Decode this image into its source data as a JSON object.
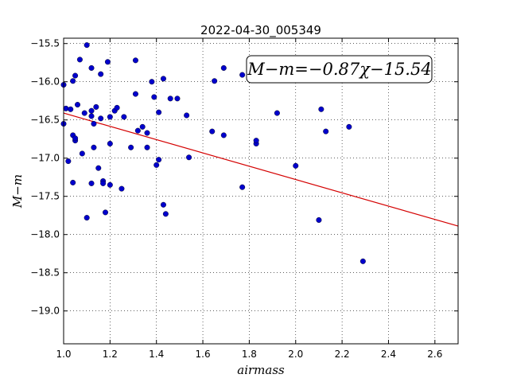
{
  "chart_data": {
    "type": "scatter",
    "title": "2022-04-30_005349",
    "xlabel": "airmass",
    "ylabel": "M−m",
    "xlim": [
      1.0,
      2.7
    ],
    "ylim": [
      -19.43,
      -15.43
    ],
    "y_inverted": true,
    "x_ticks": [
      1.0,
      1.2,
      1.4,
      1.6,
      1.8,
      2.0,
      2.2,
      2.4,
      2.6
    ],
    "x_tick_labels": [
      "1.0",
      "1.2",
      "1.4",
      "1.6",
      "1.8",
      "2.0",
      "2.2",
      "2.4",
      "2.6"
    ],
    "y_ticks": [
      -15.5,
      -16.0,
      -16.5,
      -17.0,
      -17.5,
      -18.0,
      -18.5,
      -19.0
    ],
    "y_tick_labels": [
      "−15.5",
      "−16.0",
      "−16.5",
      "−17.0",
      "−17.5",
      "−18.0",
      "−18.5",
      "−19.0"
    ],
    "grid": true,
    "annotation": "M−m=−0.87χ−15.54",
    "fit": {
      "slope": -0.87,
      "intercept": -15.54,
      "color": "#d40000"
    },
    "point_color": "#0000cc",
    "points": [
      [
        1.0,
        -16.04
      ],
      [
        1.0,
        -16.55
      ],
      [
        1.01,
        -16.35
      ],
      [
        1.02,
        -17.04
      ],
      [
        1.03,
        -16.36
      ],
      [
        1.04,
        -15.99
      ],
      [
        1.04,
        -16.7
      ],
      [
        1.05,
        -16.77
      ],
      [
        1.05,
        -16.74
      ],
      [
        1.04,
        -17.32
      ],
      [
        1.05,
        -15.92
      ],
      [
        1.06,
        -16.3
      ],
      [
        1.07,
        -15.71
      ],
      [
        1.08,
        -16.94
      ],
      [
        1.09,
        -16.41
      ],
      [
        1.1,
        -15.52
      ],
      [
        1.1,
        -17.78
      ],
      [
        1.12,
        -15.82
      ],
      [
        1.12,
        -16.38
      ],
      [
        1.12,
        -16.45
      ],
      [
        1.12,
        -17.33
      ],
      [
        1.13,
        -16.86
      ],
      [
        1.13,
        -16.55
      ],
      [
        1.14,
        -16.33
      ],
      [
        1.15,
        -17.13
      ],
      [
        1.16,
        -15.9
      ],
      [
        1.16,
        -16.48
      ],
      [
        1.17,
        -17.3
      ],
      [
        1.17,
        -17.33
      ],
      [
        1.18,
        -17.71
      ],
      [
        1.19,
        -15.74
      ],
      [
        1.2,
        -16.46
      ],
      [
        1.2,
        -16.81
      ],
      [
        1.2,
        -17.35
      ],
      [
        1.22,
        -16.38
      ],
      [
        1.23,
        -16.34
      ],
      [
        1.25,
        -17.4
      ],
      [
        1.26,
        -16.46
      ],
      [
        1.29,
        -16.86
      ],
      [
        1.31,
        -15.72
      ],
      [
        1.31,
        -16.16
      ],
      [
        1.32,
        -16.64
      ],
      [
        1.34,
        -16.59
      ],
      [
        1.36,
        -16.86
      ],
      [
        1.36,
        -16.67
      ],
      [
        1.38,
        -16.0
      ],
      [
        1.39,
        -16.2
      ],
      [
        1.4,
        -17.09
      ],
      [
        1.41,
        -17.02
      ],
      [
        1.41,
        -16.4
      ],
      [
        1.43,
        -15.96
      ],
      [
        1.43,
        -17.61
      ],
      [
        1.44,
        -17.73
      ],
      [
        1.46,
        -16.22
      ],
      [
        1.49,
        -16.22
      ],
      [
        1.53,
        -16.44
      ],
      [
        1.54,
        -16.99
      ],
      [
        1.64,
        -16.65
      ],
      [
        1.65,
        -15.99
      ],
      [
        1.69,
        -16.7
      ],
      [
        1.69,
        -15.82
      ],
      [
        1.77,
        -15.91
      ],
      [
        1.77,
        -17.38
      ],
      [
        1.83,
        -16.81
      ],
      [
        1.83,
        -16.77
      ],
      [
        1.92,
        -16.41
      ],
      [
        2.0,
        -17.1
      ],
      [
        2.1,
        -17.81
      ],
      [
        2.11,
        -16.36
      ],
      [
        2.13,
        -16.65
      ],
      [
        2.23,
        -16.59
      ],
      [
        2.29,
        -18.35
      ]
    ]
  }
}
